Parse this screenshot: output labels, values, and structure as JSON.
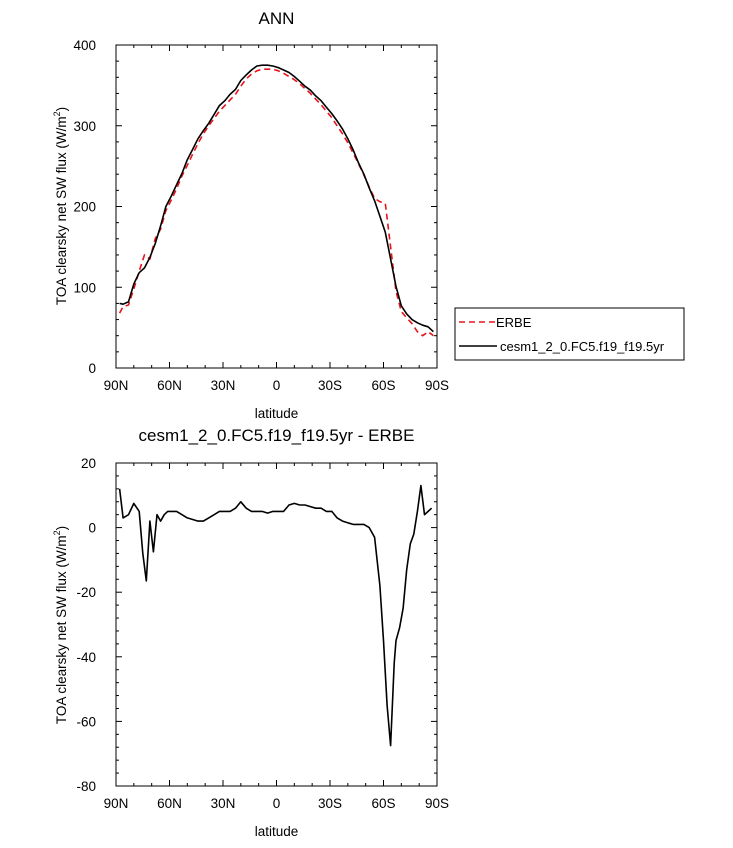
{
  "chart_data": [
    {
      "type": "line",
      "title": "ANN",
      "xlabel": "latitude",
      "ylabel": "TOA clearsky net SW flux (W/m",
      "ylabel_sup": "2",
      "ylabel_close": ")",
      "xlim": [
        90,
        -90
      ],
      "ylim": [
        0,
        400
      ],
      "xticks": [
        90,
        60,
        30,
        0,
        -30,
        -60,
        -90
      ],
      "xtick_labels": [
        "90N",
        "60N",
        "30N",
        "0",
        "30S",
        "60S",
        "90S"
      ],
      "yticks": [
        0,
        100,
        200,
        300,
        400
      ],
      "ytick_labels": [
        "0",
        "100",
        "200",
        "300",
        "400"
      ],
      "legend_position": "right",
      "series": [
        {
          "name": "ERBE",
          "color": "#e8141b",
          "dash": "dashed",
          "x": [
            88,
            86,
            83,
            80,
            77,
            74,
            71,
            68,
            65,
            62,
            59,
            56,
            53,
            50,
            47,
            44,
            41,
            38,
            35,
            32,
            29,
            26,
            23,
            20,
            17,
            14,
            11,
            8,
            5,
            2,
            -1,
            -4,
            -7,
            -10,
            -13,
            -16,
            -19,
            -22,
            -25,
            -28,
            -31,
            -34,
            -37,
            -40,
            -43,
            -46,
            -49,
            -52,
            -55,
            -58,
            -61,
            -64,
            -67,
            -70,
            -73,
            -76,
            -79,
            -82,
            -85,
            -88
          ],
          "y": [
            68,
            76,
            78,
            98,
            120,
            140,
            135,
            160,
            172,
            195,
            208,
            222,
            238,
            251,
            265,
            278,
            290,
            300,
            309,
            318,
            325,
            332,
            339,
            349,
            358,
            364,
            368,
            370,
            370,
            370,
            368,
            365,
            361,
            357,
            352,
            346,
            340,
            333,
            326,
            318,
            310,
            300,
            290,
            279,
            266,
            253,
            239,
            224,
            210,
            206,
            204,
            150,
            95,
            70,
            62,
            55,
            45,
            40,
            45,
            40
          ]
        },
        {
          "name": "cesm1_2_0.FC5.f19_f19.5yr",
          "color": "#000000",
          "dash": "solid",
          "x": [
            88,
            86,
            83,
            80,
            77,
            74,
            71,
            68,
            65,
            62,
            59,
            56,
            53,
            50,
            47,
            44,
            41,
            38,
            35,
            32,
            29,
            26,
            23,
            20,
            17,
            14,
            11,
            8,
            5,
            2,
            -1,
            -4,
            -7,
            -10,
            -13,
            -16,
            -19,
            -22,
            -25,
            -28,
            -31,
            -34,
            -37,
            -40,
            -43,
            -46,
            -49,
            -52,
            -55,
            -58,
            -61,
            -64,
            -67,
            -70,
            -73,
            -76,
            -79,
            -82,
            -85,
            -88
          ],
          "y": [
            80,
            79,
            82,
            104,
            118,
            124,
            137,
            154,
            176,
            200,
            213,
            227,
            241,
            258,
            271,
            284,
            294,
            303,
            314,
            325,
            331,
            339,
            345,
            356,
            363,
            369,
            374,
            375,
            375,
            374,
            372,
            369,
            366,
            361,
            355,
            349,
            344,
            337,
            331,
            323,
            315,
            306,
            296,
            284,
            270,
            254,
            240,
            223,
            207,
            188,
            168,
            135,
            101,
            77,
            67,
            60,
            56,
            53,
            51,
            45
          ]
        }
      ]
    },
    {
      "type": "line",
      "title": "cesm1_2_0.FC5.f19_f19.5yr - ERBE",
      "xlabel": "latitude",
      "ylabel": "TOA clearsky net SW flux (W/m",
      "ylabel_sup": "2",
      "ylabel_close": ")",
      "xlim": [
        90,
        -90
      ],
      "ylim": [
        -80,
        20
      ],
      "xticks": [
        90,
        60,
        30,
        0,
        -30,
        -60,
        -90
      ],
      "xtick_labels": [
        "90N",
        "60N",
        "30N",
        "0",
        "30S",
        "60S",
        "90S"
      ],
      "yticks": [
        -80,
        -60,
        -40,
        -20,
        0,
        20
      ],
      "ytick_labels": [
        "-80",
        "-60",
        "-40",
        "-20",
        "0",
        "20"
      ],
      "series": [
        {
          "color": "#000000",
          "dash": "solid",
          "x": [
            88,
            86,
            83,
            80,
            77,
            75,
            73,
            71,
            69,
            67,
            65,
            63,
            61,
            59,
            56,
            53,
            50,
            47,
            44,
            41,
            38,
            35,
            32,
            29,
            26,
            23,
            20,
            17,
            14,
            11,
            8,
            5,
            2,
            -1,
            -4,
            -7,
            -10,
            -13,
            -16,
            -19,
            -22,
            -25,
            -28,
            -31,
            -34,
            -37,
            -40,
            -43,
            -46,
            -49,
            -52,
            -55,
            -58,
            -60,
            -62,
            -64,
            -66,
            -67,
            -69,
            -71,
            -73,
            -75,
            -77,
            -79,
            -81,
            -83,
            -85,
            -87
          ],
          "y": [
            12,
            3,
            4,
            7.5,
            5,
            -8,
            -16.5,
            2,
            -7.5,
            4,
            2,
            4,
            5,
            5,
            5,
            4,
            3,
            2.5,
            2,
            2,
            3,
            4,
            5,
            5,
            5,
            6,
            8,
            6,
            5,
            5,
            5,
            4.5,
            5,
            5,
            5,
            7,
            7.5,
            7,
            7,
            6.5,
            6,
            6,
            5,
            5,
            3,
            2,
            1.5,
            1,
            1,
            1,
            0,
            -3,
            -18,
            -35,
            -55,
            -67.5,
            -42,
            -35,
            -31,
            -25,
            -13,
            -5,
            -2,
            5,
            13,
            4,
            5,
            6
          ]
        }
      ]
    }
  ]
}
